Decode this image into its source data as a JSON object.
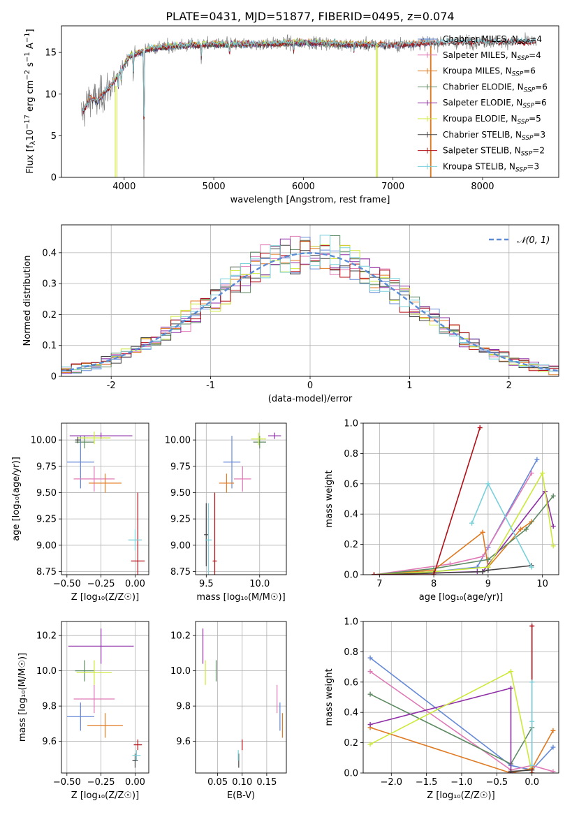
{
  "colors": {
    "chabrier_miles": "#6489d6",
    "salpeter_miles": "#e07ab6",
    "kroupa_miles": "#e07a22",
    "chabrier_elodie": "#5e8a63",
    "salpeter_elodie": "#8e2fa6",
    "kroupa_elodie": "#cce93a",
    "chabrier_stelib": "#444444",
    "salpeter_stelib": "#b30f16",
    "kroupa_stelib": "#79d0da",
    "normal": "#5b8bd4",
    "data": "#808080"
  },
  "chart_data": [
    {
      "id": "spectrum",
      "type": "line",
      "title": "PLATE=0431, MJD=51877, FIBERID=0495, z=0.074",
      "xlabel": "wavelength [Angstrom, rest frame]",
      "ylabel": "Flux [f_λ10^-17 erg cm^-2 s^-1 A^-1]",
      "xlim": [
        3300,
        8850
      ],
      "ylim": [
        0,
        18.2
      ],
      "xticks": [
        4000,
        5000,
        6000,
        7000,
        8000
      ],
      "yticks": [
        0,
        5,
        10,
        15
      ],
      "grid": false,
      "legend_position": "top-right",
      "legend": [
        {
          "key": "chabrier_miles",
          "name": "Chabrier MILES, N",
          "sub": "SSP",
          "val": "=4"
        },
        {
          "key": "salpeter_miles",
          "name": "Salpeter MILES, N",
          "sub": "SSP",
          "val": "=4"
        },
        {
          "key": "kroupa_miles",
          "name": "Kroupa MILES, N",
          "sub": "SSP",
          "val": "=6"
        },
        {
          "key": "chabrier_elodie",
          "name": "Chabrier ELODIE, N",
          "sub": "SSP",
          "val": "=6"
        },
        {
          "key": "salpeter_elodie",
          "name": "Salpeter ELODIE, N",
          "sub": "SSP",
          "val": "=6"
        },
        {
          "key": "kroupa_elodie",
          "name": "Kroupa ELODIE, N",
          "sub": "SSP",
          "val": "=5"
        },
        {
          "key": "chabrier_stelib",
          "name": "Chabrier STELIB, N",
          "sub": "SSP",
          "val": "=3"
        },
        {
          "key": "salpeter_stelib",
          "name": "Salpeter STELIB, N",
          "sub": "SSP",
          "val": "=2"
        },
        {
          "key": "kroupa_stelib",
          "name": "Kroupa STELIB, N",
          "sub": "SSP",
          "val": "=3"
        }
      ],
      "continuum_knots": [
        [
          3520,
          7.5
        ],
        [
          3620,
          9.5
        ],
        [
          3700,
          9.2
        ],
        [
          3850,
          11.0
        ],
        [
          3950,
          12.5
        ],
        [
          4050,
          14.5
        ],
        [
          4300,
          15.5
        ],
        [
          4600,
          15.8
        ],
        [
          5000,
          16.0
        ],
        [
          5500,
          16.0
        ],
        [
          6000,
          16.2
        ],
        [
          6500,
          16.0
        ],
        [
          7000,
          15.9
        ],
        [
          7500,
          16.2
        ],
        [
          8000,
          16.3
        ],
        [
          8600,
          16.3
        ]
      ],
      "absorption_lines": [
        [
          3934,
          2.0
        ],
        [
          3969,
          2.0
        ],
        [
          4102,
          3.0
        ],
        [
          4221,
          15.5
        ],
        [
          4861,
          2.0
        ],
        [
          5175,
          1.5
        ],
        [
          5890,
          1.5
        ],
        [
          6563,
          1.0
        ]
      ],
      "artifacts": [
        [
          3900,
          11.0,
          3920
        ],
        [
          6815,
          16.0,
          6825
        ],
        [
          7418,
          15.8,
          7425
        ]
      ]
    },
    {
      "id": "residuals",
      "type": "step",
      "xlabel": "(data-model)/error",
      "ylabel": "Normed distribution",
      "xlim": [
        -2.5,
        2.5
      ],
      "ylim": [
        0,
        0.49
      ],
      "xticks": [
        -2,
        -1,
        0,
        1,
        2
      ],
      "yticks": [
        0,
        0.1,
        0.2,
        0.3,
        0.4
      ],
      "grid": true,
      "legend_position": "top-right",
      "legend_label": "𝒩(0, 1)",
      "bin_width": 0.1
    },
    {
      "id": "age_vs_Z",
      "type": "errorbar",
      "xlabel": "Z [log₁₀(Z/Z☉)]",
      "ylabel": "age  [log₁₀(age/yr)]",
      "xlim": [
        -0.54,
        0.1
      ],
      "ylim": [
        8.72,
        10.16
      ],
      "xticks": [
        -0.5,
        -0.25,
        0.0
      ],
      "xtick_labels": [
        "−0.50",
        "−0.25",
        "0.00"
      ],
      "yticks": [
        8.75,
        9.0,
        9.25,
        9.5,
        9.75,
        10.0
      ],
      "ytick_labels": [
        "8.75",
        "9.00",
        "9.25",
        "9.50",
        "9.75",
        "10.00"
      ],
      "grid": true,
      "points": [
        {
          "key": "chabrier_miles",
          "x": -0.4,
          "xerr": 0.1,
          "y": 9.79,
          "yerr": 0.25
        },
        {
          "key": "salpeter_miles",
          "x": -0.3,
          "xerr": 0.15,
          "y": 9.63,
          "yerr": 0.12
        },
        {
          "key": "kroupa_miles",
          "x": -0.22,
          "xerr": 0.12,
          "y": 9.59,
          "yerr": 0.09
        },
        {
          "key": "chabrier_elodie",
          "x": -0.37,
          "xerr": 0.07,
          "y": 9.98,
          "yerr": 0.06
        },
        {
          "key": "salpeter_elodie",
          "x": -0.25,
          "xerr": 0.23,
          "y": 10.04,
          "yerr": 0.03
        },
        {
          "key": "kroupa_elodie",
          "x": -0.3,
          "xerr": 0.12,
          "y": 10.02,
          "yerr": 0.06
        },
        {
          "key": "chabrier_stelib",
          "x": -0.42,
          "xerr": 0.02,
          "y": 10.0,
          "yerr": 0.03
        },
        {
          "key": "salpeter_stelib",
          "x": 0.02,
          "xerr": 0.05,
          "y": 8.85,
          "yerr": 0.65
        },
        {
          "key": "kroupa_stelib",
          "x": 0.0,
          "xerr": 0.05,
          "y": 9.05,
          "yerr": 0.1
        }
      ]
    },
    {
      "id": "age_vs_mass",
      "type": "errorbar",
      "xlabel": "mass [log₁₀(M/M☉)]",
      "xlim": [
        9.4,
        10.25
      ],
      "ylim": [
        8.72,
        10.16
      ],
      "xticks": [
        9.5,
        10.0
      ],
      "xtick_labels": [
        "9.5",
        "10.0"
      ],
      "yticks": [
        8.75,
        9.0,
        9.25,
        9.5,
        9.75,
        10.0
      ],
      "ytick_labels": [
        "8.75",
        "9.00",
        "9.25",
        "9.50",
        "9.75",
        "10.00"
      ],
      "grid": true,
      "points": [
        {
          "key": "chabrier_miles",
          "x": 9.74,
          "xerr": 0.08,
          "y": 9.79,
          "yerr": 0.25
        },
        {
          "key": "salpeter_miles",
          "x": 9.84,
          "xerr": 0.08,
          "y": 9.63,
          "yerr": 0.12
        },
        {
          "key": "kroupa_miles",
          "x": 9.69,
          "xerr": 0.07,
          "y": 9.59,
          "yerr": 0.09
        },
        {
          "key": "chabrier_elodie",
          "x": 10.0,
          "xerr": 0.06,
          "y": 9.98,
          "yerr": 0.06
        },
        {
          "key": "salpeter_elodie",
          "x": 10.14,
          "xerr": 0.06,
          "y": 10.04,
          "yerr": 0.03
        },
        {
          "key": "kroupa_elodie",
          "x": 9.99,
          "xerr": 0.07,
          "y": 10.01,
          "yerr": 0.06
        },
        {
          "key": "chabrier_stelib",
          "x": 9.5,
          "xerr": 0.02,
          "y": 9.1,
          "yerr": 0.3
        },
        {
          "key": "salpeter_stelib",
          "x": 9.58,
          "xerr": 0.02,
          "y": 8.85,
          "yerr": 0.65
        },
        {
          "key": "kroupa_stelib",
          "x": 9.52,
          "xerr": 0.03,
          "y": 9.05,
          "yerr": 0.35
        }
      ]
    },
    {
      "id": "weight_vs_age",
      "type": "line",
      "xlabel": "age  [log₁₀(age/yr)]",
      "ylabel": "mass weight",
      "xlim": [
        6.7,
        10.3
      ],
      "ylim": [
        0,
        1.0
      ],
      "xticks": [
        7,
        8,
        9,
        10
      ],
      "xtick_labels": [
        "7",
        "8",
        "9",
        "10"
      ],
      "yticks": [
        0,
        0.2,
        0.4,
        0.6,
        0.8,
        1.0
      ],
      "ytick_labels": [
        "0.0",
        "0.2",
        "0.4",
        "0.6",
        "0.8",
        "1.0"
      ],
      "grid": true,
      "series": [
        {
          "key": "chabrier_miles",
          "x": [
            6.9,
            8.0,
            8.8,
            9.0,
            9.9
          ],
          "y": [
            0.0,
            0.02,
            0.05,
            0.18,
            0.76
          ]
        },
        {
          "key": "salpeter_miles",
          "x": [
            6.9,
            8.3,
            8.9,
            9.8
          ],
          "y": [
            0.0,
            0.07,
            0.12,
            0.67
          ]
        },
        {
          "key": "kroupa_miles",
          "x": [
            6.9,
            8.0,
            8.9,
            9.0,
            9.6,
            9.8
          ],
          "y": [
            0.0,
            0.03,
            0.28,
            0.05,
            0.3,
            0.35
          ]
        },
        {
          "key": "chabrier_elodie",
          "x": [
            6.9,
            8.0,
            9.0,
            9.7,
            10.2
          ],
          "y": [
            0.0,
            0.04,
            0.1,
            0.3,
            0.52
          ]
        },
        {
          "key": "salpeter_elodie",
          "x": [
            6.9,
            8.8,
            8.9,
            10.05,
            10.2
          ],
          "y": [
            0.0,
            0.02,
            0.02,
            0.55,
            0.32
          ]
        },
        {
          "key": "kroupa_elodie",
          "x": [
            6.9,
            8.0,
            9.0,
            10.0,
            10.2
          ],
          "y": [
            0.0,
            0.02,
            0.05,
            0.67,
            0.19
          ]
        },
        {
          "key": "chabrier_stelib",
          "x": [
            6.9,
            8.0,
            8.9,
            9.0,
            9.8
          ],
          "y": [
            0.0,
            0.01,
            0.02,
            0.03,
            0.06
          ]
        },
        {
          "key": "salpeter_stelib",
          "x": [
            6.9,
            8.0,
            8.85
          ],
          "y": [
            0.0,
            0.0,
            0.97
          ]
        },
        {
          "key": "kroupa_stelib",
          "x": [
            8.7,
            9.0,
            9.8
          ],
          "y": [
            0.34,
            0.6,
            0.05
          ]
        }
      ]
    },
    {
      "id": "mass_vs_Z",
      "type": "errorbar",
      "xlabel": "Z [log₁₀(Z/Z☉)]",
      "ylabel": "mass [log₁₀(M/M☉)]",
      "xlim": [
        -0.54,
        0.1
      ],
      "ylim": [
        9.42,
        10.28
      ],
      "xticks": [
        -0.5,
        -0.25,
        0.0
      ],
      "xtick_labels": [
        "−0.50",
        "−0.25",
        "0.00"
      ],
      "yticks": [
        9.6,
        9.8,
        10.0,
        10.2
      ],
      "ytick_labels": [
        "9.6",
        "9.8",
        "10.0",
        "10.2"
      ],
      "grid": true,
      "points": [
        {
          "key": "chabrier_miles",
          "x": -0.4,
          "xerr": 0.1,
          "y": 9.74,
          "yerr": 0.08
        },
        {
          "key": "salpeter_miles",
          "x": -0.3,
          "xerr": 0.15,
          "y": 9.84,
          "yerr": 0.08
        },
        {
          "key": "kroupa_miles",
          "x": -0.22,
          "xerr": 0.13,
          "y": 9.69,
          "yerr": 0.07
        },
        {
          "key": "chabrier_elodie",
          "x": -0.37,
          "xerr": 0.07,
          "y": 10.0,
          "yerr": 0.06
        },
        {
          "key": "salpeter_elodie",
          "x": -0.25,
          "xerr": 0.24,
          "y": 10.14,
          "yerr": 0.1
        },
        {
          "key": "kroupa_elodie",
          "x": -0.3,
          "xerr": 0.13,
          "y": 9.99,
          "yerr": 0.07
        },
        {
          "key": "chabrier_stelib",
          "x": 0.0,
          "xerr": 0.02,
          "y": 9.49,
          "yerr": 0.04
        },
        {
          "key": "salpeter_stelib",
          "x": 0.02,
          "xerr": 0.03,
          "y": 9.58,
          "yerr": 0.03
        },
        {
          "key": "kroupa_stelib",
          "x": 0.01,
          "xerr": 0.03,
          "y": 9.52,
          "yerr": 0.03
        }
      ]
    },
    {
      "id": "mass_vs_ebv",
      "type": "errorbar",
      "xlabel": "E(B-V)",
      "xlim": [
        0.005,
        0.19
      ],
      "ylim": [
        9.42,
        10.28
      ],
      "xticks": [
        0.05,
        0.1,
        0.15
      ],
      "xtick_labels": [
        "0.05",
        "0.10",
        "0.15"
      ],
      "yticks": [
        9.6,
        9.8,
        10.0,
        10.2
      ],
      "ytick_labels": [
        "9.6",
        "9.8",
        "10.0",
        "10.2"
      ],
      "grid": true,
      "points": [
        {
          "key": "chabrier_miles",
          "x": 0.177,
          "xerr": 0.0,
          "y": 9.74,
          "yerr": 0.08
        },
        {
          "key": "salpeter_miles",
          "x": 0.171,
          "xerr": 0.0,
          "y": 9.84,
          "yerr": 0.08
        },
        {
          "key": "kroupa_miles",
          "x": 0.182,
          "xerr": 0.0,
          "y": 9.69,
          "yerr": 0.07
        },
        {
          "key": "chabrier_elodie",
          "x": 0.047,
          "xerr": 0.0,
          "y": 10.0,
          "yerr": 0.06
        },
        {
          "key": "salpeter_elodie",
          "x": 0.02,
          "xerr": 0.0,
          "y": 10.14,
          "yerr": 0.1
        },
        {
          "key": "kroupa_elodie",
          "x": 0.025,
          "xerr": 0.0,
          "y": 9.99,
          "yerr": 0.07
        },
        {
          "key": "chabrier_stelib",
          "x": 0.093,
          "xerr": 0.0,
          "y": 9.49,
          "yerr": 0.04
        },
        {
          "key": "salpeter_stelib",
          "x": 0.1,
          "xerr": 0.0,
          "y": 9.58,
          "yerr": 0.03
        },
        {
          "key": "kroupa_stelib",
          "x": 0.092,
          "xerr": 0.0,
          "y": 9.52,
          "yerr": 0.03
        }
      ]
    },
    {
      "id": "weight_vs_Z",
      "type": "line",
      "xlabel": "Z [log₁₀(Z/Z☉)]",
      "ylabel": "mass weight",
      "xlim": [
        -2.4,
        0.38
      ],
      "ylim": [
        0,
        1.0
      ],
      "xticks": [
        -2.0,
        -1.5,
        -1.0,
        -0.5,
        0.0
      ],
      "xtick_labels": [
        "−2.0",
        "−1.5",
        "−1.0",
        "−0.5",
        "0.0"
      ],
      "yticks": [
        0,
        0.2,
        0.4,
        0.6,
        0.8,
        1.0
      ],
      "ytick_labels": [
        "0.0",
        "0.2",
        "0.4",
        "0.6",
        "0.8",
        "1.0"
      ],
      "grid": true,
      "series": [
        {
          "key": "chabrier_miles",
          "x": [
            -2.3,
            -0.3,
            0.0,
            0.3
          ],
          "y": [
            0.76,
            0.05,
            0.02,
            0.17
          ]
        },
        {
          "key": "salpeter_miles",
          "x": [
            -2.3,
            -0.3,
            0.0,
            0.3
          ],
          "y": [
            0.67,
            0.02,
            0.05,
            0.01
          ]
        },
        {
          "key": "kroupa_miles",
          "x": [
            -2.3,
            -0.3,
            0.0,
            0.3
          ],
          "y": [
            0.3,
            0.0,
            0.03,
            0.28
          ]
        },
        {
          "key": "chabrier_elodie",
          "x": [
            -2.3,
            -0.3,
            0.0
          ],
          "y": [
            0.52,
            0.06,
            0.3
          ]
        },
        {
          "key": "salpeter_elodie",
          "x": [
            -2.3,
            -0.3,
            -0.3
          ],
          "y": [
            0.32,
            0.56,
            0.0
          ]
        },
        {
          "key": "kroupa_elodie",
          "x": [
            -2.3,
            -0.3,
            0.0
          ],
          "y": [
            0.19,
            0.67,
            0.0
          ]
        },
        {
          "key": "chabrier_stelib",
          "x": [
            -0.3,
            0.0
          ],
          "y": [
            0.01,
            0.02
          ]
        },
        {
          "key": "salpeter_stelib",
          "x": [
            0.0,
            0.0
          ],
          "y": [
            0.0,
            0.97
          ]
        },
        {
          "key": "kroupa_stelib",
          "x": [
            0.0,
            0.0,
            0.0
          ],
          "y": [
            0.05,
            0.6,
            0.34
          ]
        }
      ]
    }
  ]
}
